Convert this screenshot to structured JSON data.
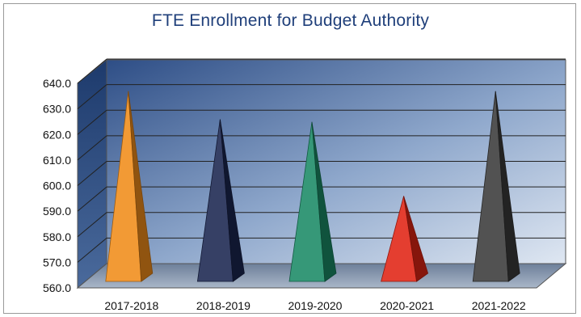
{
  "chart_data": {
    "type": "bar",
    "title": "FTE Enrollment for Budget Authority",
    "xlabel": "",
    "ylabel": "",
    "categories": [
      "2017-2018",
      "2018-2019",
      "2019-2020",
      "2020-2021",
      "2021-2022"
    ],
    "values": [
      635,
      624,
      623,
      594,
      635
    ],
    "ylim": [
      560,
      640
    ],
    "yticks": [
      "560.0",
      "570.0",
      "580.0",
      "590.0",
      "600.0",
      "610.0",
      "620.0",
      "630.0",
      "640.0"
    ],
    "bar_colors": [
      "#f08c1a",
      "#1b2650",
      "#1b8a66",
      "#e02414",
      "#3a3a3a"
    ],
    "bar_style": "3d-pyramid",
    "grid": true,
    "legend": "none"
  }
}
